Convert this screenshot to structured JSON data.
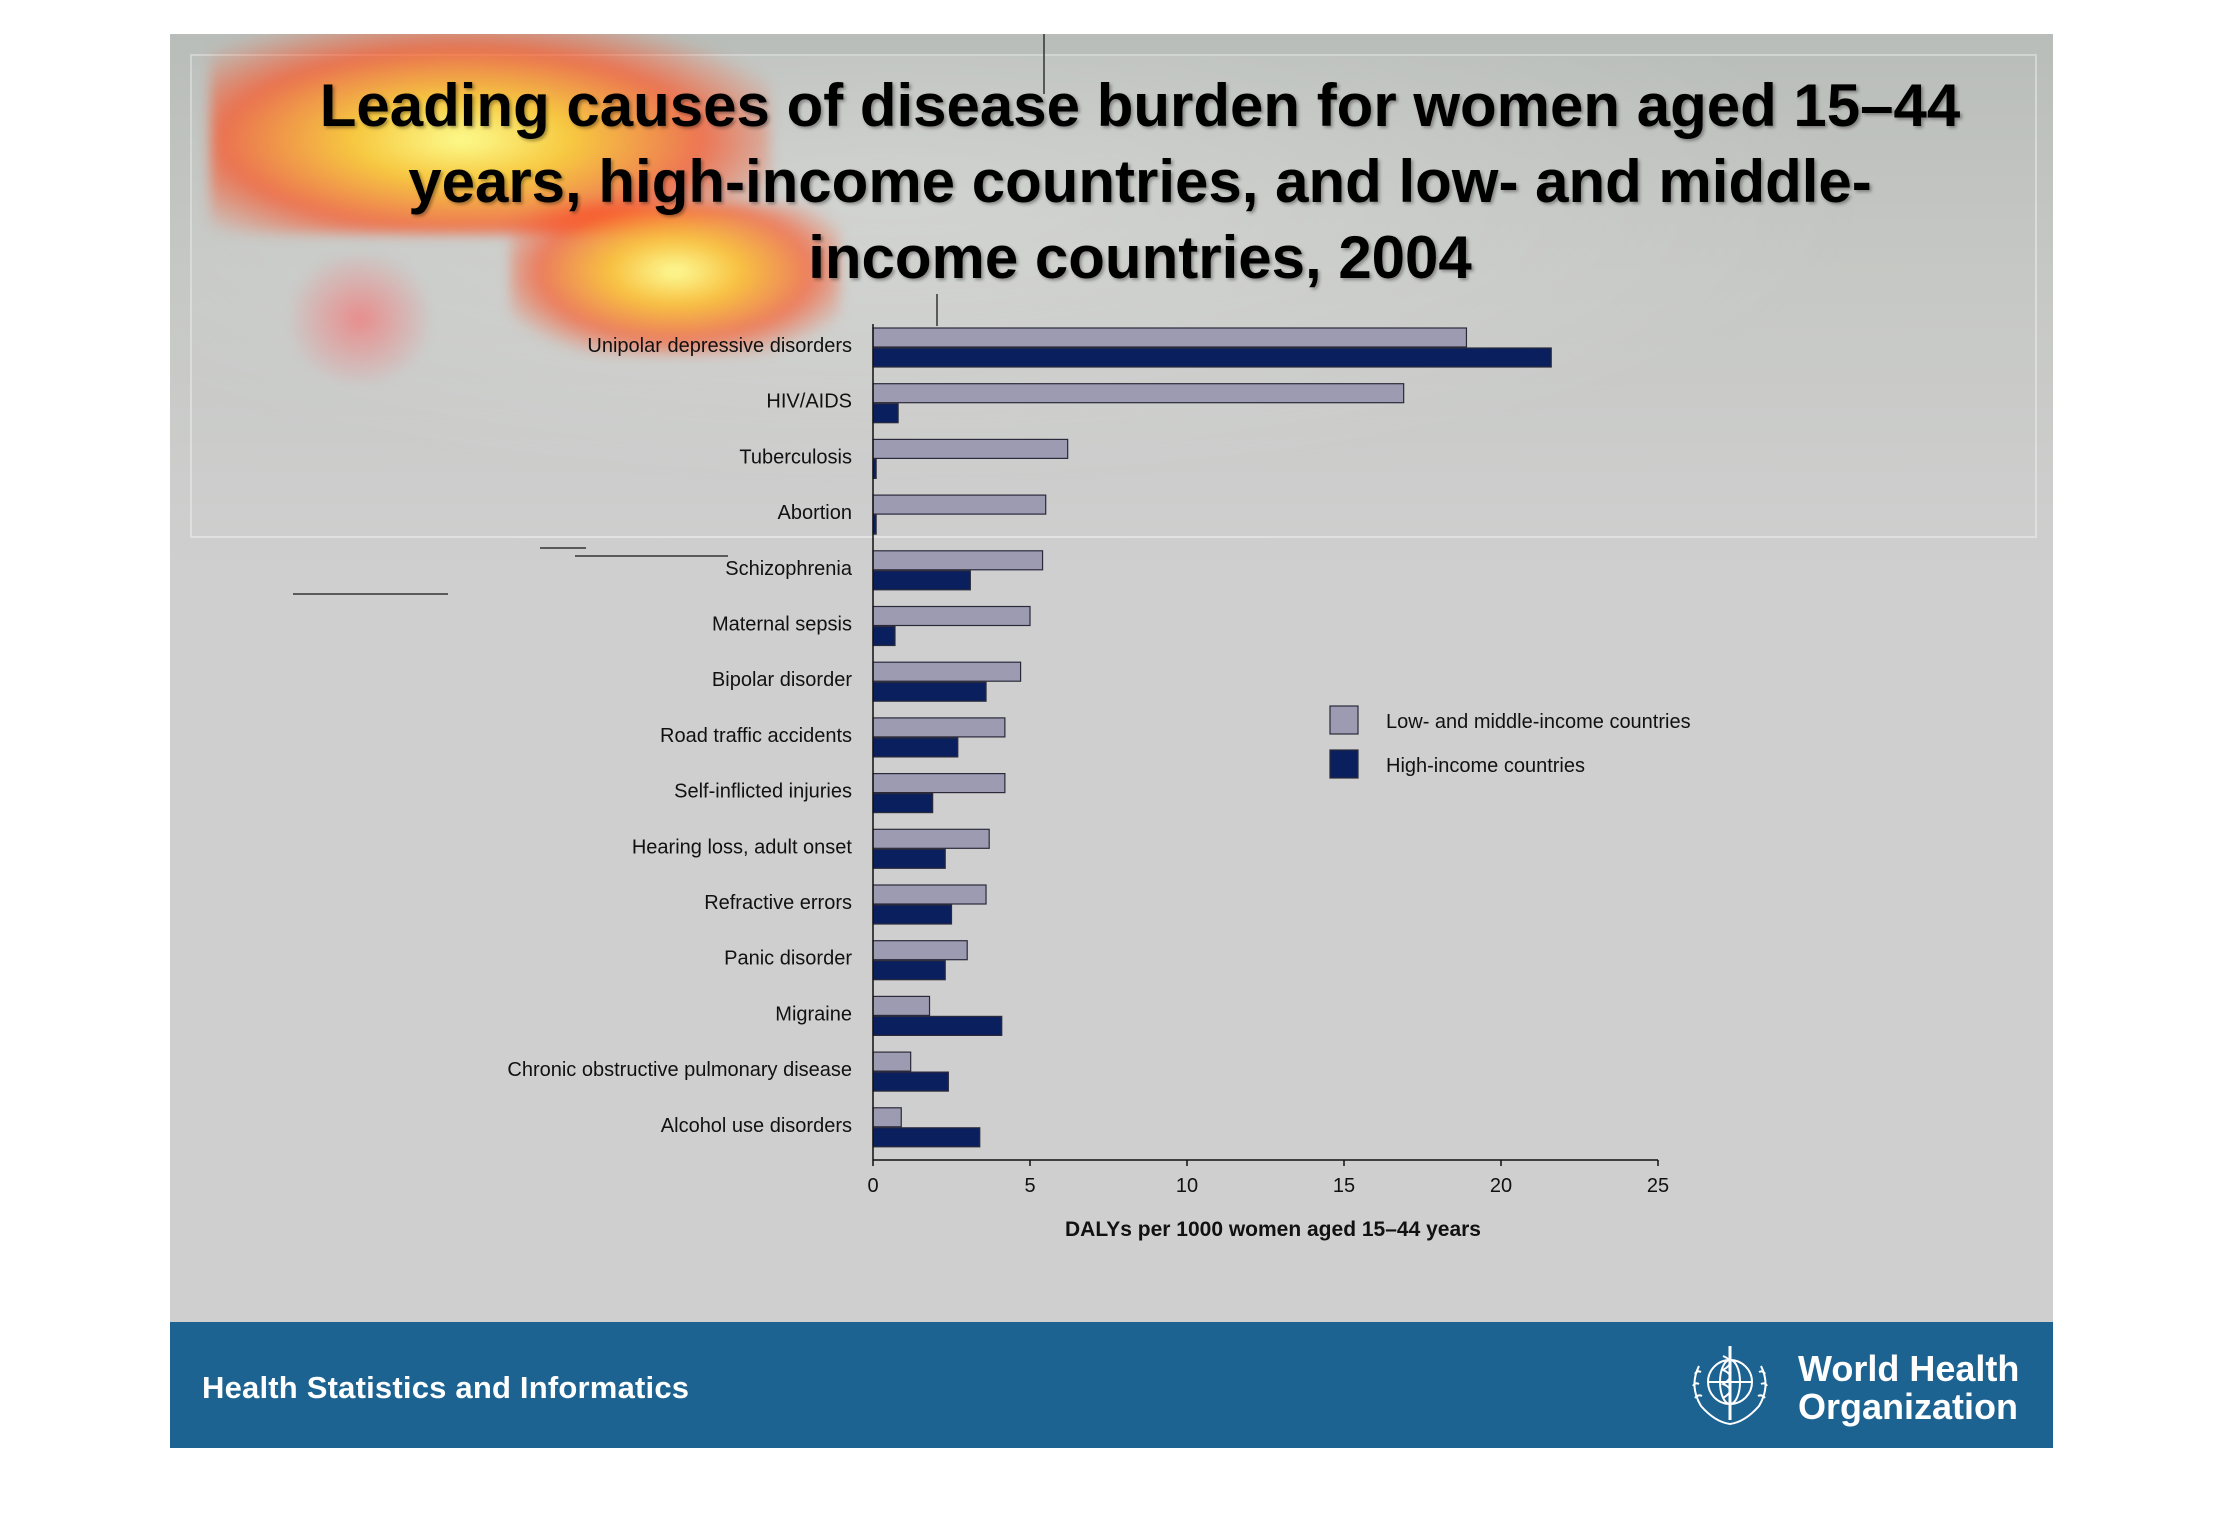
{
  "slide": {
    "title": "Leading causes of disease burden for women aged 15–44 years, high-income countries, and low- and middle-income countries, 2004"
  },
  "footer": {
    "text": "Health Statistics and Informatics",
    "org_line1": "World Health",
    "org_line2": "Organization",
    "emblem_icon": "who-emblem-icon"
  },
  "colors": {
    "low_middle": "#9c9bb2",
    "high": "#0a1f5e",
    "footer_bg": "#1c6392"
  },
  "chart_data": {
    "type": "bar",
    "orientation": "horizontal",
    "categories": [
      "Unipolar depressive disorders",
      "HIV/AIDS",
      "Tuberculosis",
      "Abortion",
      "Schizophrenia",
      "Maternal sepsis",
      "Bipolar disorder",
      "Road traffic accidents",
      "Self-inflicted injuries",
      "Hearing loss, adult onset",
      "Refractive errors",
      "Panic disorder",
      "Migraine",
      "Chronic obstructive pulmonary disease",
      "Alcohol use disorders"
    ],
    "series": [
      {
        "name": "Low- and middle-income countries",
        "color": "#9c9bb2",
        "values": [
          18.9,
          16.9,
          6.2,
          5.5,
          5.4,
          5.0,
          4.7,
          4.2,
          4.2,
          3.7,
          3.6,
          3.0,
          1.8,
          1.2,
          0.9
        ]
      },
      {
        "name": "High-income countries",
        "color": "#0a1f5e",
        "values": [
          21.6,
          0.8,
          0.1,
          0.1,
          3.1,
          0.7,
          3.6,
          2.7,
          1.9,
          2.3,
          2.5,
          2.3,
          4.1,
          2.4,
          3.4
        ]
      }
    ],
    "xlim": [
      0,
      25
    ],
    "xticks": [
      "0",
      "5",
      "10",
      "15",
      "20",
      "25"
    ],
    "xlabel": "DALYs per 1000 women aged 15–44 years",
    "ylabel": "",
    "legend_position": "right",
    "grid": false
  }
}
